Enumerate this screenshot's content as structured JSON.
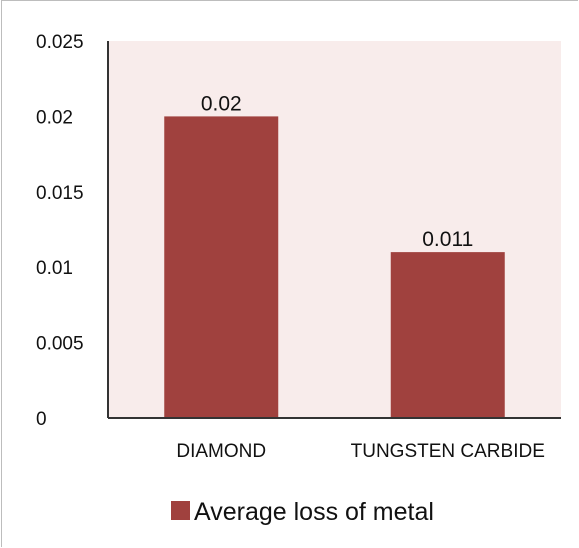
{
  "chart_data": {
    "type": "bar",
    "categories": [
      "DIAMOND",
      "TUNGSTEN CARBIDE"
    ],
    "series": [
      {
        "name": "Average loss of metal",
        "values": [
          0.02,
          0.011
        ],
        "color": "#a0413e"
      }
    ],
    "data_labels": [
      "0.02",
      "0.011"
    ],
    "ylim": [
      0,
      0.025
    ],
    "yticks": [
      0,
      0.005,
      0.01,
      0.015,
      0.02,
      0.025
    ],
    "ytick_labels": [
      "0",
      "0.005",
      "0.01",
      "0.015",
      "0.02",
      "0.025"
    ],
    "plot_background": "#f8eceb",
    "legend_position": "bottom",
    "grid": false
  }
}
